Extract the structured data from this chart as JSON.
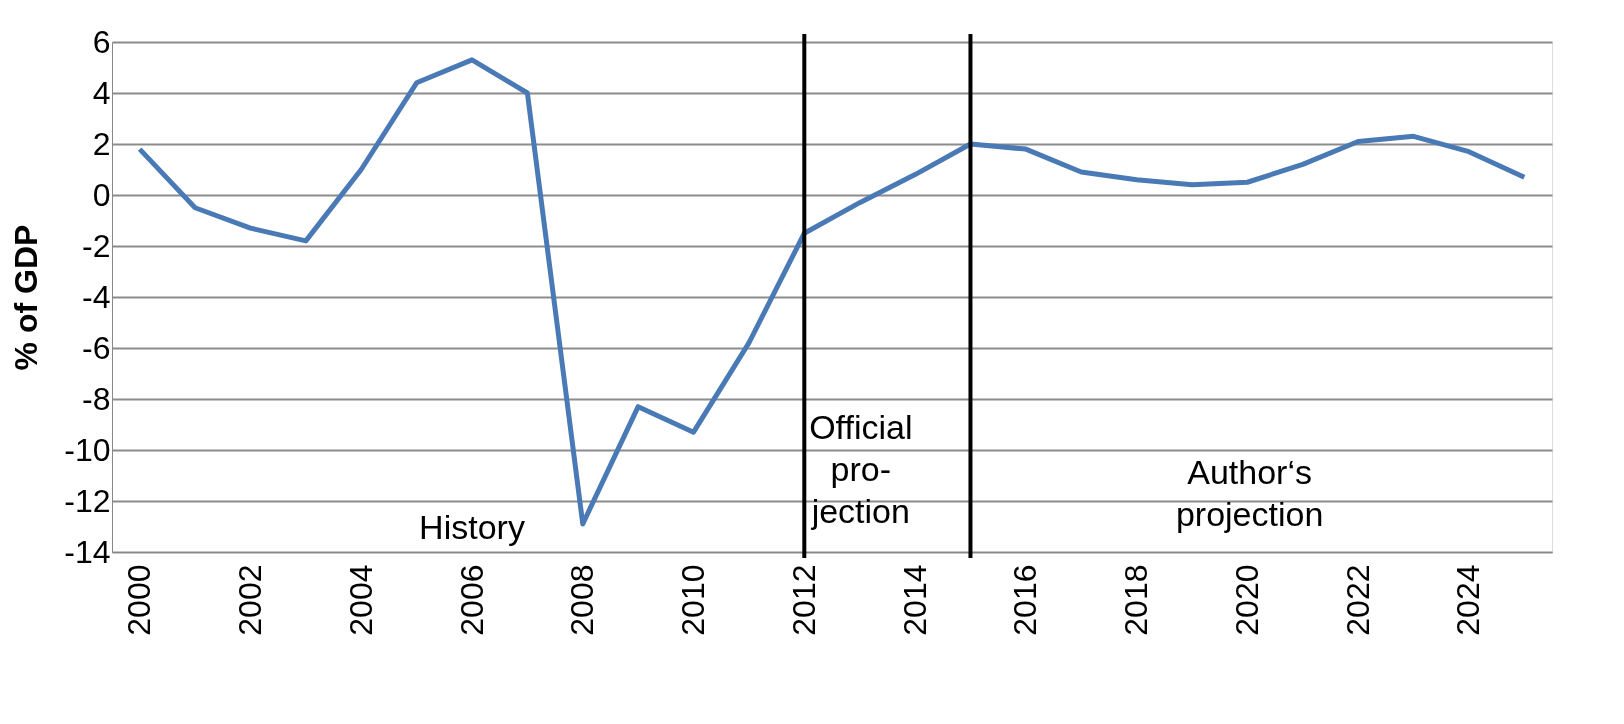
{
  "chart_data": {
    "type": "line",
    "ylabel": "% of GDP",
    "x": [
      2000,
      2001,
      2002,
      2003,
      2004,
      2005,
      2006,
      2007,
      2008,
      2009,
      2010,
      2011,
      2012,
      2013,
      2014,
      2015,
      2016,
      2017,
      2018,
      2019,
      2020,
      2021,
      2022,
      2023,
      2024,
      2025
    ],
    "xlim": [
      1999.5,
      2025.5
    ],
    "xticks": [
      2000,
      2002,
      2004,
      2006,
      2008,
      2010,
      2012,
      2014,
      2016,
      2018,
      2020,
      2022,
      2024
    ],
    "series": [
      {
        "color": "#4a7ab5",
        "values": [
          1.8,
          -0.5,
          -1.3,
          -1.8,
          1.0,
          4.4,
          5.3,
          4.0,
          -12.9,
          -8.3,
          -9.3,
          -5.8,
          -1.5,
          -0.3,
          0.8,
          2.0,
          1.8,
          0.9,
          0.6,
          0.4,
          0.5,
          1.2,
          2.1,
          2.3,
          1.7,
          0.7
        ]
      }
    ],
    "ylim": [
      -14,
      6
    ],
    "yticks": [
      -14,
      -12,
      -10,
      -8,
      -6,
      -4,
      -2,
      0,
      2,
      4,
      6
    ],
    "grid": "y",
    "marker": "none",
    "line_style": "solid",
    "ref_lines": [
      {
        "axis": "x",
        "value": 2012,
        "color": "#000000"
      },
      {
        "axis": "x",
        "value": 2015,
        "color": "#000000"
      }
    ],
    "annotations": [
      "History",
      "Official\npro-\njection",
      "Author‘s\nprojection"
    ]
  }
}
